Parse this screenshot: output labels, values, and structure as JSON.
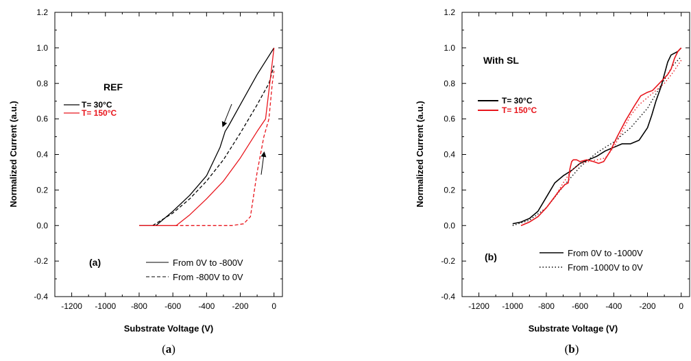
{
  "captions": {
    "a_paren_open": "(",
    "a_letter": "a",
    "a_paren_close": ")",
    "b_paren_open": "(",
    "b_letter": "b",
    "b_paren_close": ")"
  },
  "chart_data": [
    {
      "type": "line",
      "xlabel": "Substrate Voltage (V)",
      "ylabel": "Normalized Current (a.u.)",
      "xlim": [
        -1300,
        50
      ],
      "ylim": [
        -0.4,
        1.2
      ],
      "xticks": [
        "-1200",
        "-1000",
        "-800",
        "-600",
        "-400",
        "-200",
        "0"
      ],
      "yticks": [
        "-0.4",
        "-0.2",
        "0.0",
        "0.2",
        "0.4",
        "0.6",
        "0.8",
        "1.0",
        "1.2"
      ],
      "annotations": {
        "sample": "REF",
        "panel": "(a)"
      },
      "temp_legend": [
        {
          "label": "T= 30°C",
          "color": "#000000"
        },
        {
          "label": "T= 150°C",
          "color": "#e8141b"
        }
      ],
      "sweep_legend": [
        {
          "label": "From 0V to -800V",
          "style": "solid"
        },
        {
          "label": "From -800V to 0V",
          "style": "dashed"
        }
      ],
      "series": [
        {
          "temp": "30",
          "sweep": "down",
          "color": "#000000",
          "dash": "solid",
          "x": [
            -800,
            -700,
            -600,
            -500,
            -400,
            -320,
            -290,
            -270,
            -200,
            -100,
            0
          ],
          "y": [
            0.0,
            0.0,
            0.08,
            0.17,
            0.28,
            0.44,
            0.53,
            0.56,
            0.68,
            0.85,
            1.0
          ]
        },
        {
          "temp": "30",
          "sweep": "up",
          "color": "#000000",
          "dash": "dashed",
          "x": [
            -720,
            -600,
            -500,
            -400,
            -300,
            -200,
            -100,
            -30,
            0
          ],
          "y": [
            0.0,
            0.07,
            0.15,
            0.25,
            0.37,
            0.52,
            0.68,
            0.8,
            0.9
          ]
        },
        {
          "temp": "150",
          "sweep": "down",
          "color": "#e8141b",
          "dash": "solid",
          "x": [
            -800,
            -580,
            -500,
            -400,
            -300,
            -200,
            -100,
            -50,
            0
          ],
          "y": [
            0.0,
            0.0,
            0.06,
            0.15,
            0.25,
            0.38,
            0.53,
            0.6,
            1.0
          ]
        },
        {
          "temp": "150",
          "sweep": "up",
          "color": "#e8141b",
          "dash": "dashed",
          "x": [
            -590,
            -400,
            -250,
            -180,
            -140,
            -100,
            -60,
            -30,
            -10,
            0
          ],
          "y": [
            0.0,
            0.0,
            0.0,
            0.01,
            0.05,
            0.3,
            0.5,
            0.6,
            0.8,
            0.87
          ]
        }
      ]
    },
    {
      "type": "line",
      "xlabel": "Substrate Voltage (V)",
      "ylabel": "Normalized Current (a.u.)",
      "xlim": [
        -1300,
        50
      ],
      "ylim": [
        -0.4,
        1.2
      ],
      "xticks": [
        "-1200",
        "-1000",
        "-800",
        "-600",
        "-400",
        "-200",
        "0"
      ],
      "yticks": [
        "-0.4",
        "-0.2",
        "0.0",
        "0.2",
        "0.4",
        "0.6",
        "0.8",
        "1.0",
        "1.2"
      ],
      "annotations": {
        "sample": "With SL",
        "panel": "(b)"
      },
      "temp_legend": [
        {
          "label": "T= 30°C",
          "color": "#000000"
        },
        {
          "label": "T= 150°C",
          "color": "#e8141b"
        }
      ],
      "sweep_legend": [
        {
          "label": "From 0V to -1000V",
          "style": "solid"
        },
        {
          "label": "From -1000V to 0V",
          "style": "dotted"
        }
      ],
      "series": [
        {
          "temp": "30",
          "sweep": "down",
          "color": "#000000",
          "dash": "solid",
          "x": [
            -1000,
            -950,
            -900,
            -850,
            -800,
            -750,
            -700,
            -650,
            -600,
            -550,
            -500,
            -450,
            -400,
            -350,
            -300,
            -250,
            -200,
            -175,
            -150,
            -120,
            -100,
            -80,
            -60,
            -40,
            -20,
            0
          ],
          "y": [
            0.01,
            0.02,
            0.04,
            0.08,
            0.16,
            0.24,
            0.28,
            0.31,
            0.35,
            0.37,
            0.39,
            0.42,
            0.44,
            0.46,
            0.46,
            0.48,
            0.55,
            0.62,
            0.7,
            0.78,
            0.85,
            0.92,
            0.96,
            0.97,
            0.98,
            1.0
          ]
        },
        {
          "temp": "30",
          "sweep": "up",
          "color": "#000000",
          "dash": "dotted",
          "x": [
            -1000,
            -900,
            -800,
            -700,
            -600,
            -500,
            -400,
            -300,
            -200,
            -150,
            -100,
            -50,
            0
          ],
          "y": [
            0.0,
            0.03,
            0.1,
            0.22,
            0.33,
            0.41,
            0.47,
            0.55,
            0.66,
            0.74,
            0.82,
            0.9,
            0.95
          ]
        },
        {
          "temp": "150",
          "sweep": "down",
          "color": "#e8141b",
          "dash": "solid",
          "x": [
            -950,
            -900,
            -850,
            -800,
            -760,
            -720,
            -690,
            -670,
            -660,
            -650,
            -640,
            -620,
            -600,
            -560,
            -520,
            -490,
            -460,
            -420,
            -380,
            -330,
            -280,
            -240,
            -200,
            -170,
            -140,
            -110,
            -80,
            -60,
            -40,
            -20,
            0
          ],
          "y": [
            0.0,
            0.02,
            0.05,
            0.1,
            0.15,
            0.2,
            0.23,
            0.24,
            0.32,
            0.36,
            0.37,
            0.37,
            0.36,
            0.37,
            0.36,
            0.35,
            0.36,
            0.42,
            0.5,
            0.59,
            0.67,
            0.73,
            0.75,
            0.76,
            0.79,
            0.82,
            0.85,
            0.88,
            0.94,
            0.98,
            1.0
          ]
        },
        {
          "temp": "150",
          "sweep": "up",
          "color": "#e8141b",
          "dash": "dotted",
          "x": [
            -950,
            -900,
            -850,
            -800,
            -750,
            -700,
            -650,
            -600,
            -550,
            -500,
            -450,
            -400,
            -350,
            -300,
            -250,
            -200,
            -150,
            -100,
            -50,
            0
          ],
          "y": [
            0.0,
            0.02,
            0.05,
            0.1,
            0.16,
            0.24,
            0.31,
            0.35,
            0.36,
            0.37,
            0.38,
            0.44,
            0.53,
            0.62,
            0.68,
            0.72,
            0.76,
            0.8,
            0.86,
            0.93
          ]
        }
      ]
    }
  ]
}
